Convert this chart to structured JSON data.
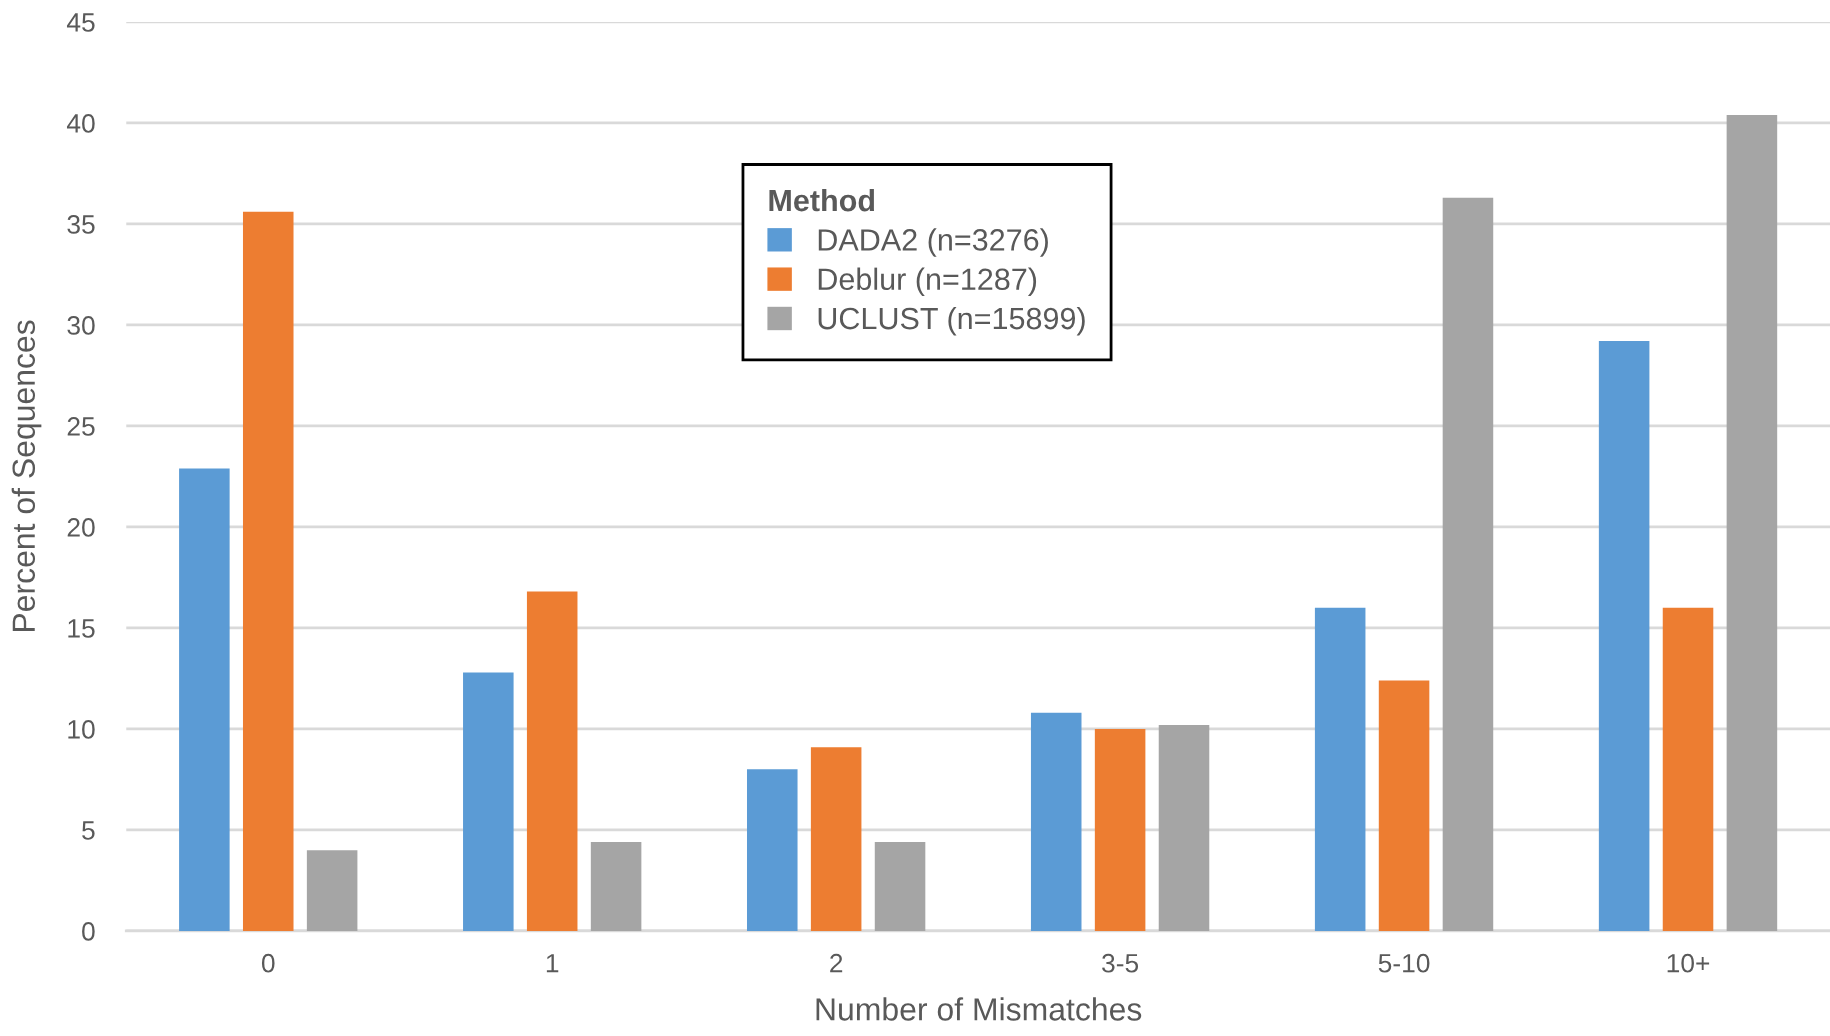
{
  "chart_data": {
    "type": "bar",
    "xlabel": "Number of Mismatches",
    "ylabel": "Percent of Sequences",
    "legend_title": "Method",
    "categories": [
      "0",
      "1",
      "2",
      "3-5",
      "5-10",
      "10+"
    ],
    "series": [
      {
        "name": "DADA2 (n=3276)",
        "color": "#5b9bd5",
        "values": [
          22.9,
          12.8,
          8.0,
          10.8,
          16.0,
          29.2
        ]
      },
      {
        "name": "Deblur (n=1287)",
        "color": "#ed7d31",
        "values": [
          35.6,
          16.8,
          9.1,
          10.0,
          12.4,
          16.0
        ]
      },
      {
        "name": "UCLUST (n=15899)",
        "color": "#a5a5a5",
        "values": [
          4.0,
          4.4,
          4.4,
          10.2,
          36.3,
          40.4
        ]
      }
    ],
    "ylim": [
      0,
      45
    ],
    "yticks": [
      0,
      5,
      10,
      15,
      20,
      25,
      30,
      35,
      40,
      45
    ],
    "grid": "y",
    "legend": "top"
  }
}
